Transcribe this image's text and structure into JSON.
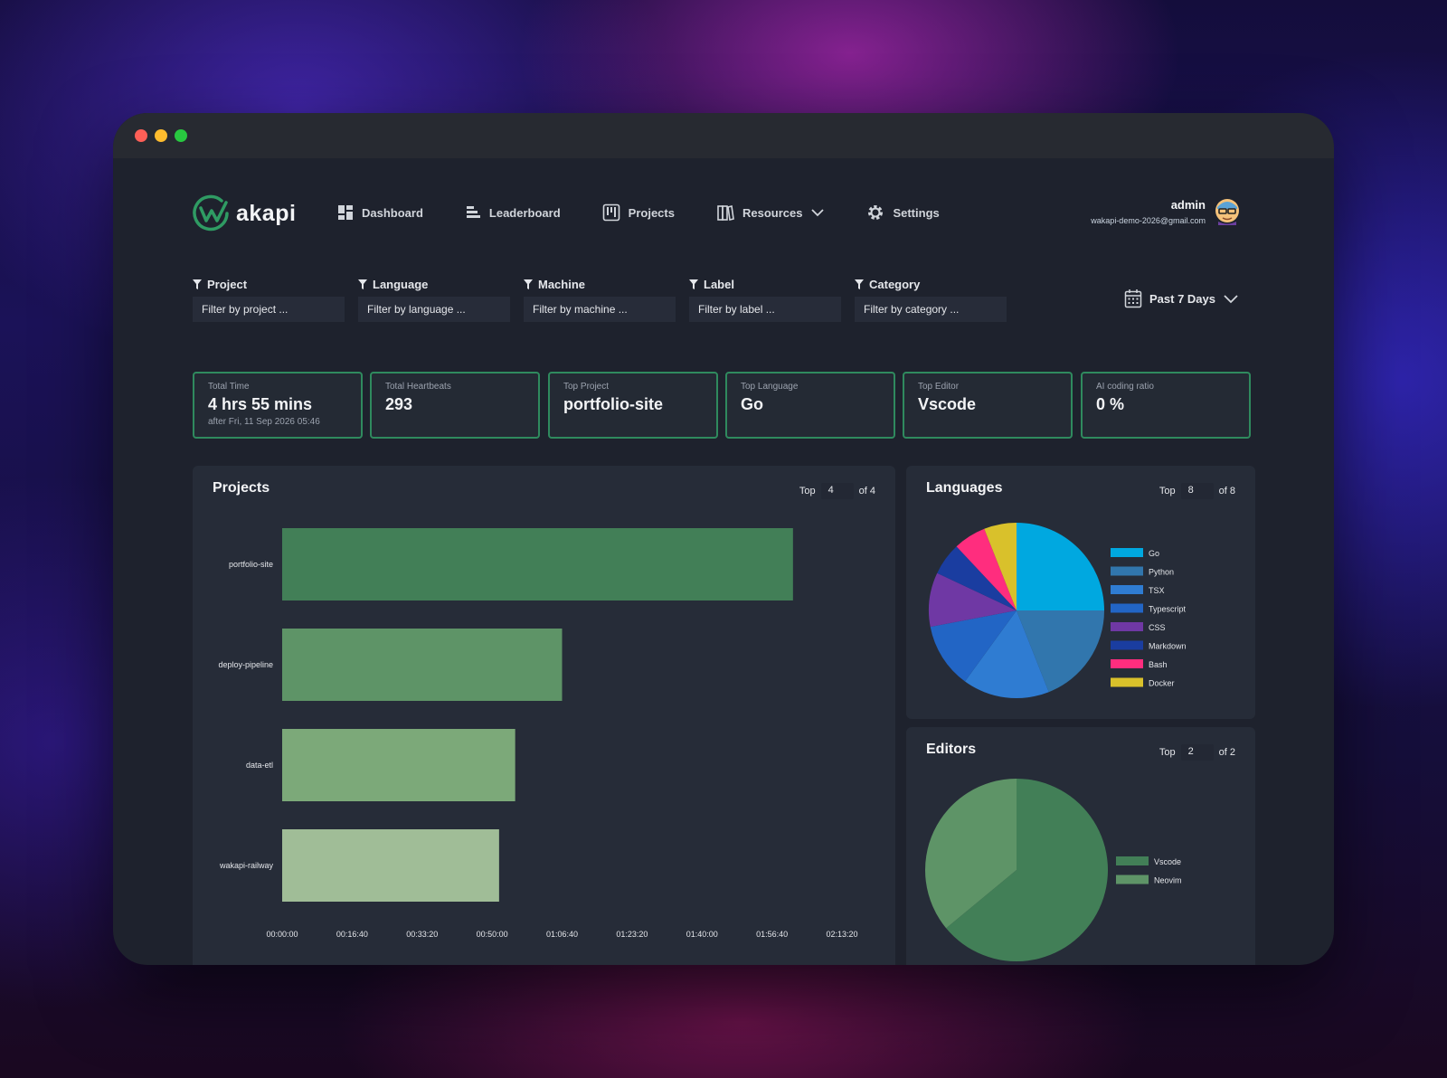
{
  "app": {
    "name": "akapi"
  },
  "nav": [
    {
      "label": "Dashboard",
      "icon": "dashboard-icon"
    },
    {
      "label": "Leaderboard",
      "icon": "leaderboard-icon"
    },
    {
      "label": "Projects",
      "icon": "projects-icon"
    },
    {
      "label": "Resources",
      "icon": "resources-icon"
    },
    {
      "label": "Settings",
      "icon": "gear-icon"
    }
  ],
  "user": {
    "name": "admin",
    "email": "wakapi-demo-2026@gmail.com"
  },
  "filters": [
    {
      "label": "Project",
      "placeholder": "Filter by project ..."
    },
    {
      "label": "Language",
      "placeholder": "Filter by language ..."
    },
    {
      "label": "Machine",
      "placeholder": "Filter by machine ..."
    },
    {
      "label": "Label",
      "placeholder": "Filter by label ..."
    },
    {
      "label": "Category",
      "placeholder": "Filter by category ..."
    }
  ],
  "date_range": "Past 7 Days",
  "stats": [
    {
      "label": "Total Time",
      "value": "4 hrs 55 mins",
      "sub": "after Fri, 11 Sep 2026 05:46"
    },
    {
      "label": "Total Heartbeats",
      "value": "293",
      "sub": ""
    },
    {
      "label": "Top Project",
      "value": "portfolio-site",
      "sub": ""
    },
    {
      "label": "Top Language",
      "value": "Go",
      "sub": ""
    },
    {
      "label": "Top Editor",
      "value": "Vscode",
      "sub": ""
    },
    {
      "label": "AI coding ratio",
      "value": "0 %",
      "sub": ""
    }
  ],
  "panels": {
    "projects": {
      "title": "Projects",
      "top_label": "Top",
      "top_value": "4",
      "of_label": "of 4"
    },
    "languages": {
      "title": "Languages",
      "top_label": "Top",
      "top_value": "8",
      "of_label": "of 8"
    },
    "editors": {
      "title": "Editors",
      "top_label": "Top",
      "top_value": "2",
      "of_label": "of 2"
    }
  },
  "colors": {
    "accent": "#2f8a5e",
    "panel": "#262c38",
    "window": "#1e222d"
  },
  "chart_data": [
    {
      "type": "bar",
      "orientation": "horizontal",
      "categories": [
        "portfolio-site",
        "deploy-pipeline",
        "data-etl",
        "wakapi-railway"
      ],
      "values_seconds": [
        7300,
        4000,
        3330,
        3100
      ],
      "colors": [
        "#427f57",
        "#5e9467",
        "#7ca979",
        "#a0bd97"
      ],
      "x_ticks": [
        "00:00:00",
        "00:16:40",
        "00:33:20",
        "00:50:00",
        "01:06:40",
        "01:23:20",
        "01:40:00",
        "01:56:40",
        "02:13:20"
      ],
      "xlim": [
        0,
        8000
      ]
    },
    {
      "type": "pie",
      "categories": [
        "Go",
        "Python",
        "TSX",
        "Typescript",
        "CSS",
        "Markdown",
        "Bash",
        "Docker"
      ],
      "values": [
        25,
        19,
        16,
        12,
        10,
        6,
        6,
        6
      ],
      "colors": [
        "#00a8e0",
        "#3176ad",
        "#2f7cd2",
        "#2265c5",
        "#6f38a4",
        "#1a3da0",
        "#ff2d7e",
        "#d9c12b"
      ]
    },
    {
      "type": "pie",
      "categories": [
        "Vscode",
        "Neovim"
      ],
      "values": [
        64,
        36
      ],
      "colors": [
        "#427f57",
        "#5e9467"
      ]
    }
  ]
}
